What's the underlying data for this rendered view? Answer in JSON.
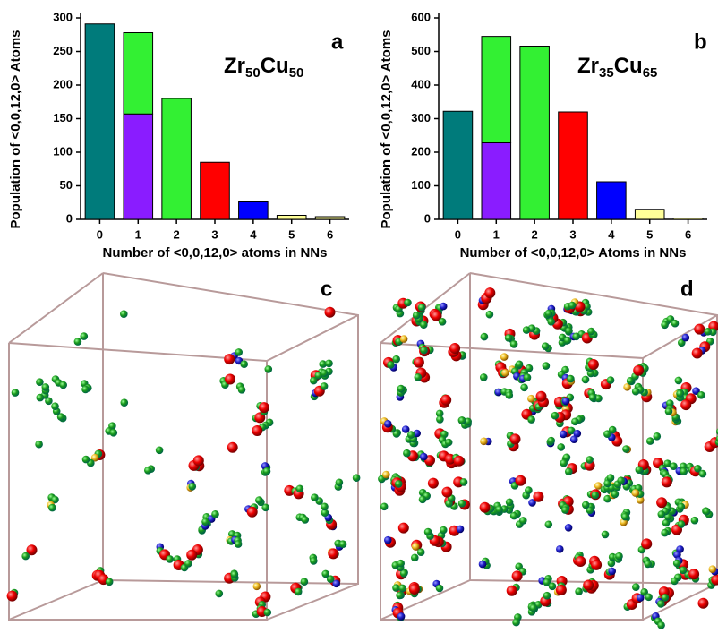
{
  "chart_data": [
    {
      "type": "bar",
      "label": "a",
      "annotation": [
        "Zr",
        "50",
        "Cu",
        "50"
      ],
      "ylabel": "Population of <0,0,12,0> Atoms",
      "xlabel": "Number of <0,0,12,0> atoms in NNs",
      "categories": [
        "0",
        "1",
        "2",
        "3",
        "4",
        "5",
        "6"
      ],
      "values": [
        291,
        157,
        180,
        85,
        26,
        6,
        4
      ],
      "colors": [
        "#007b7b",
        "#8a1cff",
        "#33f033",
        "#ff0000",
        "#0000ff",
        "#ffff99",
        "#ffff99"
      ],
      "stacked_values": [
        null,
        121,
        null,
        null,
        null,
        null,
        null
      ],
      "stacked_color": "#33f033",
      "ylim": [
        0,
        300
      ],
      "yticks": [
        0,
        50,
        100,
        150,
        200,
        250,
        300
      ]
    },
    {
      "type": "bar",
      "label": "b",
      "annotation": [
        "Zr",
        "35",
        "Cu",
        "65"
      ],
      "ylabel": "Population of <0,0,12,0> Atoms",
      "xlabel": "Number of <0,0,12,0> Atoms in NNs",
      "categories": [
        "0",
        "1",
        "2",
        "3",
        "4",
        "5",
        "6"
      ],
      "values": [
        322,
        228,
        516,
        320,
        112,
        30,
        4
      ],
      "colors": [
        "#007b7b",
        "#8a1cff",
        "#33f033",
        "#ff0000",
        "#0000ff",
        "#ffff99",
        "#ffff99"
      ],
      "stacked_values": [
        null,
        317,
        null,
        null,
        null,
        null,
        null
      ],
      "stacked_color": "#33f033",
      "ylim": [
        0,
        600
      ],
      "yticks": [
        0,
        100,
        200,
        300,
        400,
        500,
        600
      ]
    }
  ],
  "panels": [
    {
      "label": "c"
    },
    {
      "label": "d"
    }
  ]
}
